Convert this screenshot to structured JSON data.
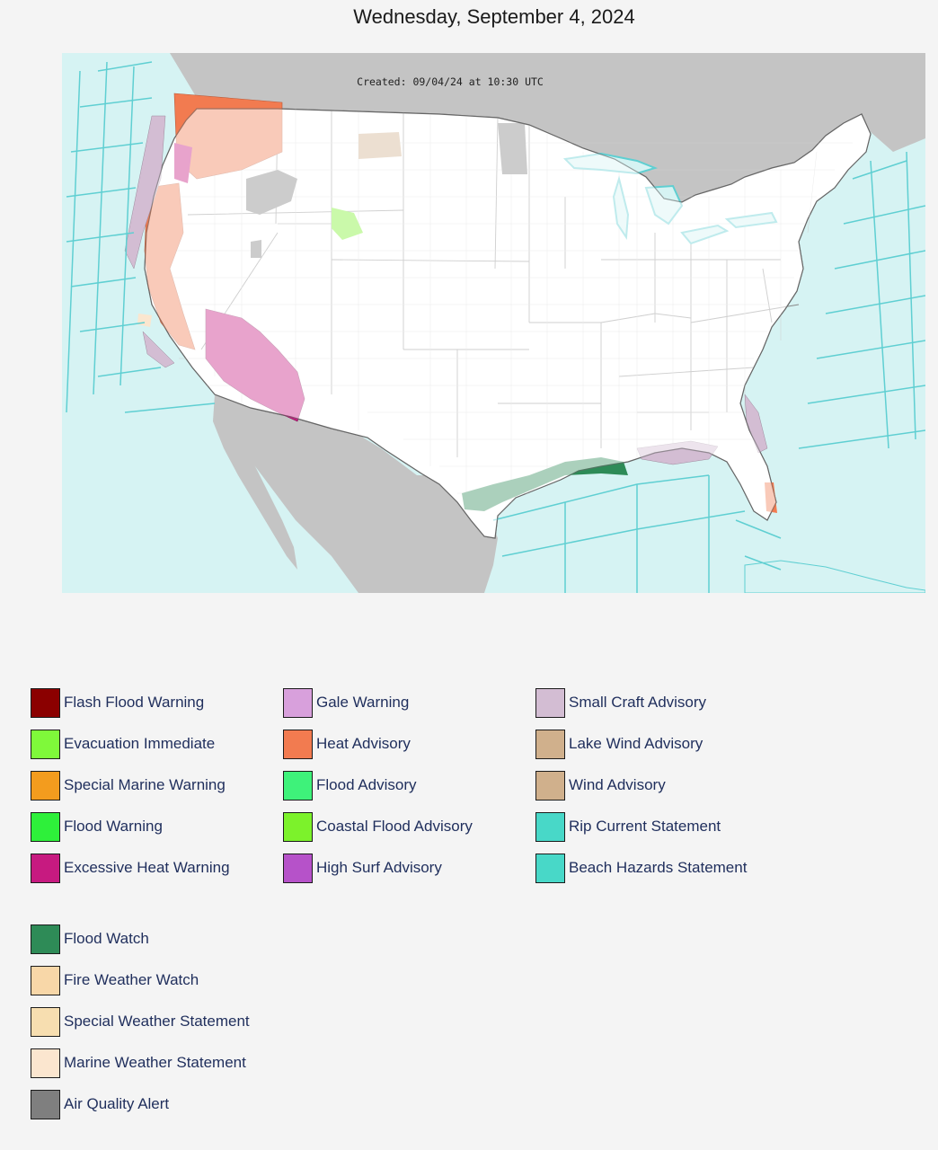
{
  "page": {
    "title": "Wednesday, September 4, 2024"
  },
  "map": {
    "created_label": "Created: 09/04/24 at 10:30 UTC",
    "ocean_color": "#d6f3f3",
    "land_color": "#c4c4c4",
    "us_fill": "#ffffff",
    "zone_line_color": "#5fcfd2"
  },
  "legend": {
    "column1": [
      {
        "label": "Flash Flood Warning",
        "color": "#8b0000"
      },
      {
        "label": "Evacuation Immediate",
        "color": "#7ff93a"
      },
      {
        "label": "Special Marine Warning",
        "color": "#f39c1e"
      },
      {
        "label": "Flood Warning",
        "color": "#2ef03a"
      },
      {
        "label": "Excessive Heat Warning",
        "color": "#c71a80"
      }
    ],
    "column2": [
      {
        "label": "Gale Warning",
        "color": "#d8a0dc"
      },
      {
        "label": "Heat Advisory",
        "color": "#f27b50"
      },
      {
        "label": "Flood Advisory",
        "color": "#3ef27a"
      },
      {
        "label": "Coastal Flood Advisory",
        "color": "#7cf22b"
      },
      {
        "label": "High Surf Advisory",
        "color": "#b652c9"
      }
    ],
    "column3": [
      {
        "label": "Small Craft Advisory",
        "color": "#d3bdd3"
      },
      {
        "label": "Lake Wind Advisory",
        "color": "#d0b08c"
      },
      {
        "label": "Wind Advisory",
        "color": "#d0b08c"
      },
      {
        "label": "Rip Current Statement",
        "color": "#48d8c8"
      },
      {
        "label": "Beach Hazards Statement",
        "color": "#48d8c8"
      }
    ],
    "column4": [
      {
        "label": "Flood Watch",
        "color": "#2e8b57"
      },
      {
        "label": "Fire Weather Watch",
        "color": "#f8d7a8"
      },
      {
        "label": "Special Weather Statement",
        "color": "#f7deb0"
      },
      {
        "label": "Marine Weather Statement",
        "color": "#fbe6cf"
      },
      {
        "label": "Air Quality Alert",
        "color": "#7f7f7f"
      }
    ]
  }
}
